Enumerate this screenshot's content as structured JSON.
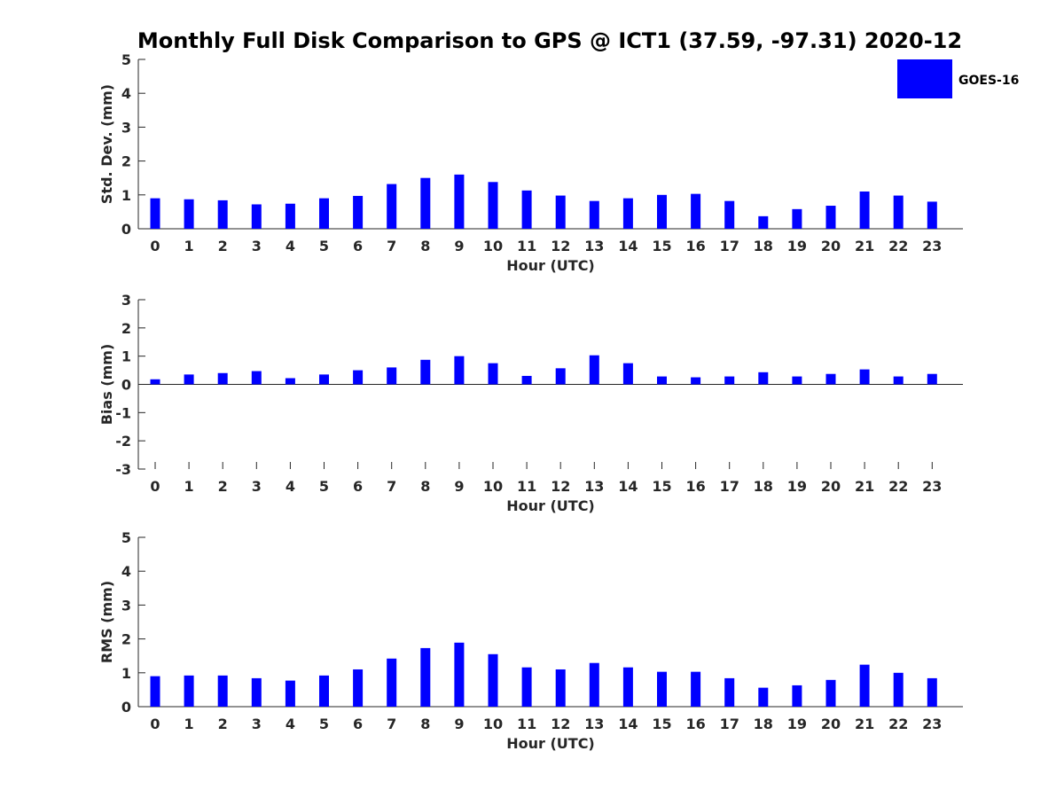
{
  "figure": {
    "title": "Monthly Full Disk Comparison to GPS @ ICT1 (37.59, -97.31) 2020-12"
  },
  "legend": {
    "label": "GOES-16",
    "color": "#0000ff",
    "placement": "top-right"
  },
  "chart_data": [
    {
      "type": "bar",
      "categories": [
        "0",
        "1",
        "2",
        "3",
        "4",
        "5",
        "6",
        "7",
        "8",
        "9",
        "10",
        "11",
        "12",
        "13",
        "14",
        "15",
        "16",
        "17",
        "18",
        "19",
        "20",
        "21",
        "22",
        "23"
      ],
      "series": [
        {
          "name": "GOES-16",
          "values": [
            0.9,
            0.87,
            0.84,
            0.72,
            0.74,
            0.9,
            0.97,
            1.32,
            1.5,
            1.6,
            1.38,
            1.13,
            0.98,
            0.82,
            0.9,
            1.0,
            1.03,
            0.82,
            0.37,
            0.58,
            0.68,
            1.1,
            0.98,
            0.8
          ]
        }
      ],
      "xlabel": "Hour (UTC)",
      "ylabel": "Std. Dev. (mm)",
      "ylim": [
        0,
        5
      ],
      "yticks": [
        "0",
        "1",
        "2",
        "3",
        "4",
        "5"
      ]
    },
    {
      "type": "bar",
      "categories": [
        "0",
        "1",
        "2",
        "3",
        "4",
        "5",
        "6",
        "7",
        "8",
        "9",
        "10",
        "11",
        "12",
        "13",
        "14",
        "15",
        "16",
        "17",
        "18",
        "19",
        "20",
        "21",
        "22",
        "23"
      ],
      "series": [
        {
          "name": "GOES-16",
          "values": [
            0.18,
            0.35,
            0.4,
            0.47,
            0.22,
            0.35,
            0.5,
            0.6,
            0.87,
            1.0,
            0.75,
            0.3,
            0.57,
            1.03,
            0.75,
            0.28,
            0.25,
            0.28,
            0.43,
            0.28,
            0.37,
            0.53,
            0.28,
            0.37
          ]
        }
      ],
      "xlabel": "Hour (UTC)",
      "ylabel": "Bias (mm)",
      "ylim": [
        -3,
        3
      ],
      "yticks": [
        "-3",
        "-2",
        "-1",
        "0",
        "1",
        "2",
        "3"
      ]
    },
    {
      "type": "bar",
      "categories": [
        "0",
        "1",
        "2",
        "3",
        "4",
        "5",
        "6",
        "7",
        "8",
        "9",
        "10",
        "11",
        "12",
        "13",
        "14",
        "15",
        "16",
        "17",
        "18",
        "19",
        "20",
        "21",
        "22",
        "23"
      ],
      "series": [
        {
          "name": "GOES-16",
          "values": [
            0.9,
            0.92,
            0.92,
            0.84,
            0.77,
            0.92,
            1.1,
            1.42,
            1.73,
            1.89,
            1.55,
            1.16,
            1.1,
            1.29,
            1.16,
            1.03,
            1.03,
            0.84,
            0.56,
            0.63,
            0.79,
            1.24,
            1.0,
            0.84
          ]
        }
      ],
      "xlabel": "Hour (UTC)",
      "ylabel": "RMS (mm)",
      "ylim": [
        0,
        5
      ],
      "yticks": [
        "0",
        "1",
        "2",
        "3",
        "4",
        "5"
      ]
    }
  ]
}
